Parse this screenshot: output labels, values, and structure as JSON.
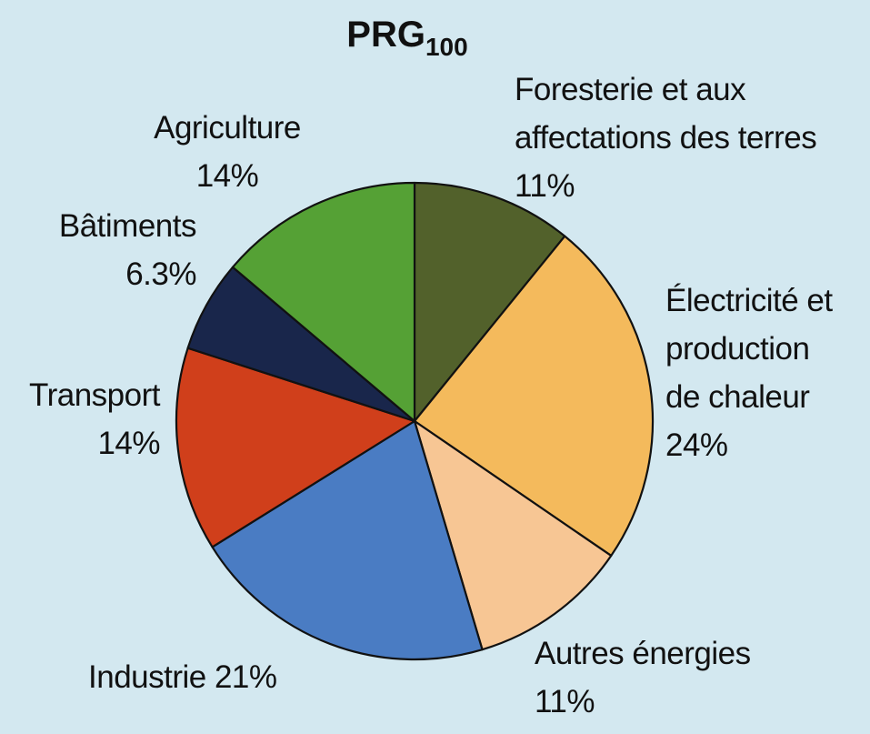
{
  "chart_data": {
    "type": "pie",
    "title": "PRG",
    "title_subscript": "100",
    "slices": [
      {
        "label_lines": [
          "Foresterie et aux",
          "affectations des terres"
        ],
        "value_label": "11%",
        "value": 11,
        "color": "#52612b"
      },
      {
        "label_lines": [
          "Électricité et",
          "production",
          "de chaleur"
        ],
        "value_label": "24%",
        "value": 24,
        "color": "#f4ba5c"
      },
      {
        "label_lines": [
          "Autres énergies"
        ],
        "value_label": "11%",
        "value": 11,
        "color": "#f7c694"
      },
      {
        "label_lines": [],
        "label_inline": "Industrie 21%",
        "value_label": "",
        "value": 21,
        "color": "#4a7cc3"
      },
      {
        "label_lines": [
          "Transport"
        ],
        "value_label": "14%",
        "value": 14,
        "color": "#d03f1b"
      },
      {
        "label_lines": [
          "Bâtiments"
        ],
        "value_label": "6.3%",
        "value": 6.3,
        "color": "#19264b"
      },
      {
        "label_lines": [
          "Agriculture"
        ],
        "value_label": "14%",
        "value": 14,
        "color": "#55a135"
      }
    ]
  }
}
